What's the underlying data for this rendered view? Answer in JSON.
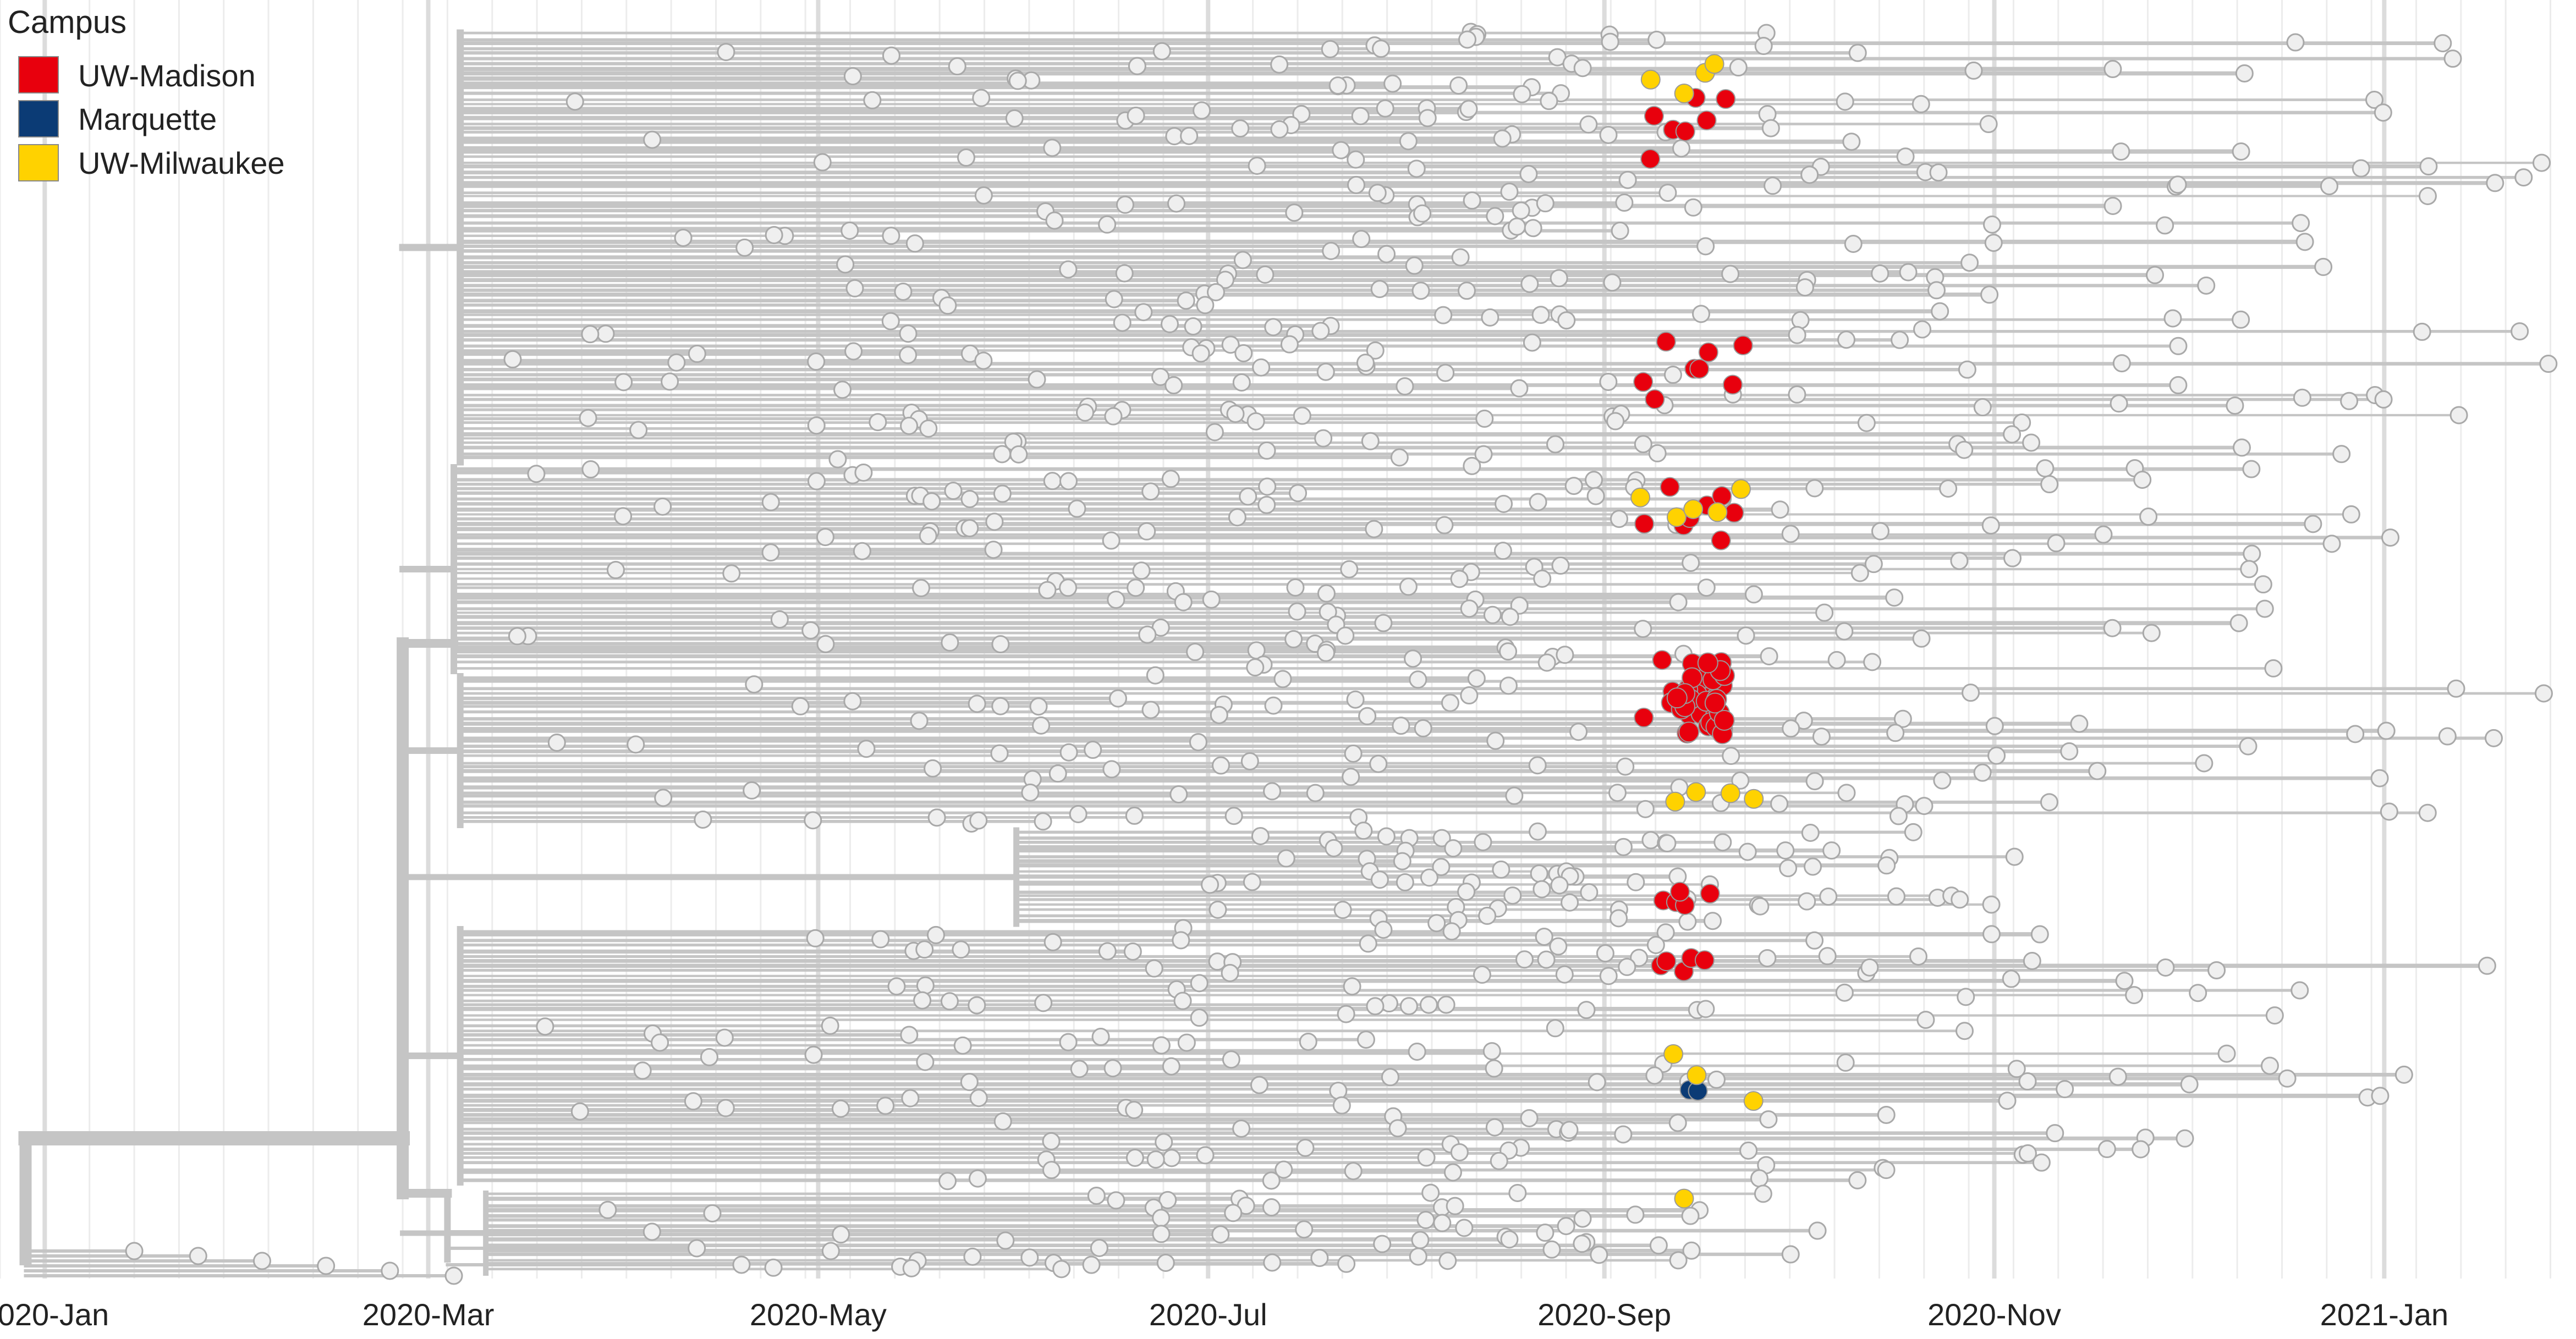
{
  "chart_data": {
    "type": "scatter",
    "subtype": "time-scaled phylogenetic tree",
    "legend": {
      "title": "Campus",
      "placement": "top-left",
      "entries": [
        {
          "name": "UW-Madison",
          "color": "#e8000d"
        },
        {
          "name": "Marquette",
          "color": "#0b3b75"
        },
        {
          "name": "UW-Milwaukee",
          "color": "#ffd200"
        }
      ]
    },
    "x_axis": {
      "type": "date",
      "range": [
        "2019-12-25",
        "2021-01-31"
      ],
      "ticks": [
        {
          "date": "2020-01-01",
          "label": "2020-Jan"
        },
        {
          "date": "2020-03-01",
          "label": "2020-Mar"
        },
        {
          "date": "2020-05-01",
          "label": "2020-May"
        },
        {
          "date": "2020-07-01",
          "label": "2020-Jul"
        },
        {
          "date": "2020-09-01",
          "label": "2020-Sep"
        },
        {
          "date": "2020-11-01",
          "label": "2020-Nov"
        },
        {
          "date": "2021-01-01",
          "label": "2021-Jan"
        }
      ],
      "minor_grid": "weekly",
      "grid": true
    },
    "other_color": "#efefef",
    "branch_color": "#c5c5c5",
    "campus_samples": {
      "UW-Madison": [
        {
          "date": "2020-09-08",
          "count": 4
        },
        {
          "date": "2020-09-10",
          "count": 6
        },
        {
          "date": "2020-09-12",
          "count": 7
        },
        {
          "date": "2020-09-14",
          "count": 8
        },
        {
          "date": "2020-09-16",
          "count": 6
        },
        {
          "date": "2020-09-18",
          "count": 4
        },
        {
          "date": "2020-09-20",
          "count": 3
        },
        {
          "date": "2020-09-22",
          "count": 2
        }
      ],
      "Marquette": [
        {
          "date": "2020-09-15",
          "count": 2
        },
        {
          "date": "2020-09-16",
          "count": 1
        }
      ],
      "UW-Milwaukee": [
        {
          "date": "2020-09-08",
          "count": 2
        },
        {
          "date": "2020-09-12",
          "count": 3
        },
        {
          "date": "2020-09-14",
          "count": 3
        },
        {
          "date": "2020-09-16",
          "count": 3
        },
        {
          "date": "2020-09-18",
          "count": 2
        },
        {
          "date": "2020-09-22",
          "count": 2
        },
        {
          "date": "2020-09-24",
          "count": 2
        }
      ]
    }
  }
}
